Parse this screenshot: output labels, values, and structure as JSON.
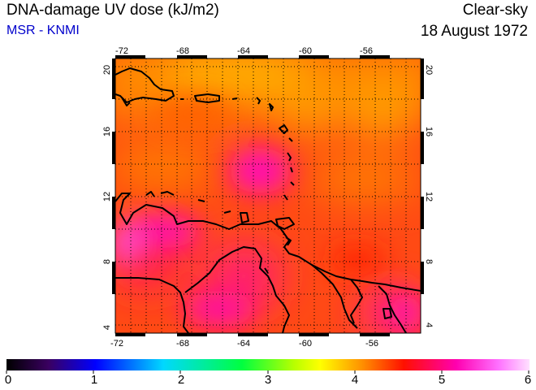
{
  "header": {
    "title": "DNA-damage UV dose (kJ/m2)",
    "subtitle": "MSR - KNMI",
    "sky": "Clear-sky",
    "date": "18 August 1972"
  },
  "colors": {
    "subtitle": "#0000cc",
    "coastline": "#000000",
    "grid": "#000000"
  },
  "map": {
    "lon_range": [
      -73,
      -53
    ],
    "lat_range": [
      3.5,
      20.5
    ],
    "lon_ticks": [
      -72,
      -68,
      -64,
      -60,
      -56
    ],
    "lat_ticks": [
      4,
      8,
      12,
      16,
      20
    ],
    "lon_labels": [
      "-72",
      "-68",
      "-64",
      "-60",
      "-56"
    ],
    "lat_labels": [
      "4",
      "8",
      "12",
      "16",
      "20"
    ]
  },
  "colorbar": {
    "min": 0,
    "max": 6,
    "labels": [
      "0",
      "1",
      "2",
      "3",
      "4",
      "5",
      "6"
    ]
  }
}
